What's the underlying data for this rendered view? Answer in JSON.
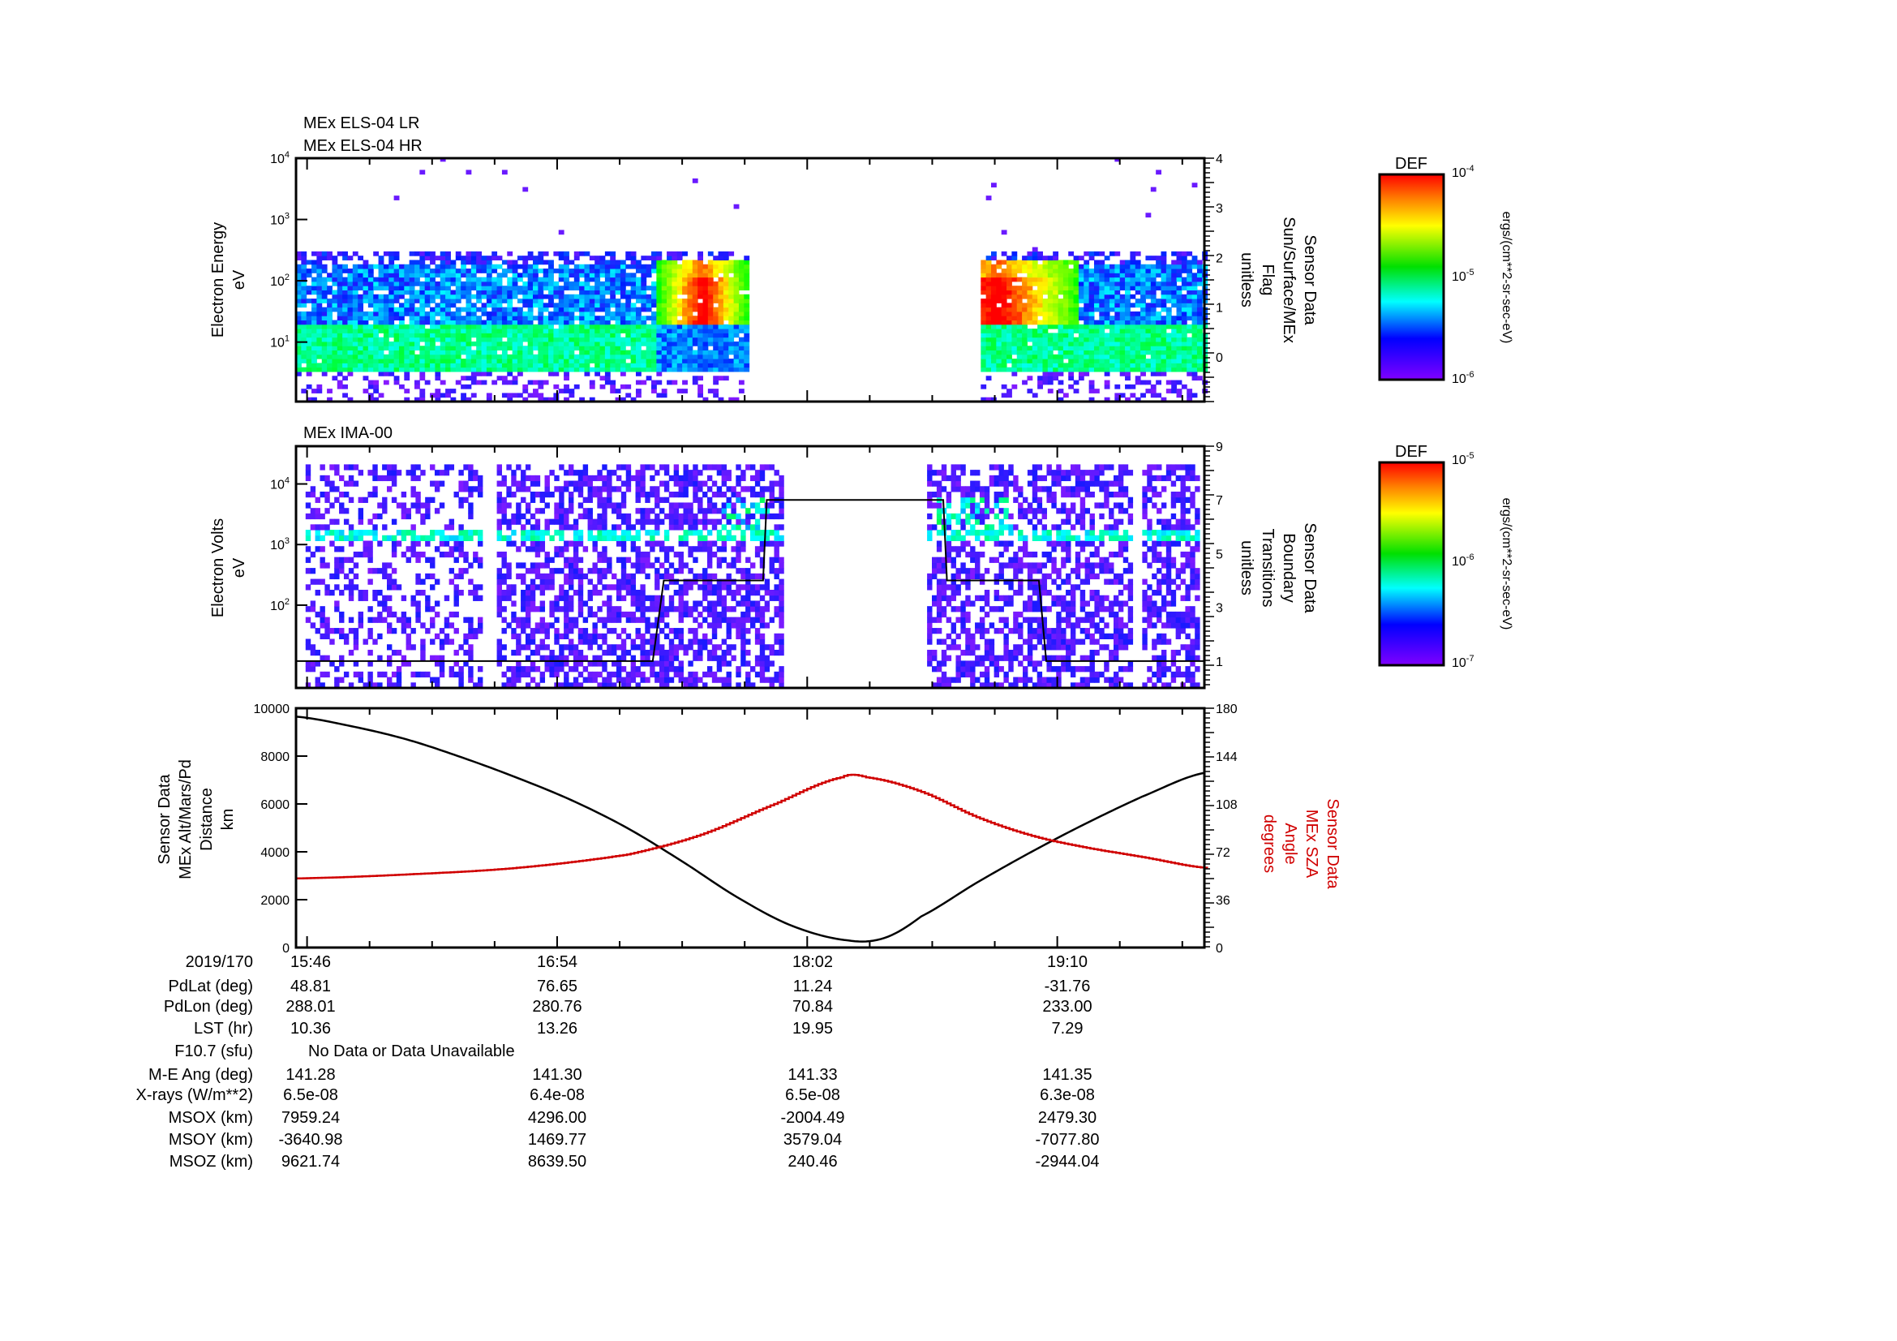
{
  "chart_data": [
    {
      "type": "heatmap",
      "title_lines": [
        "MEx ELS-04 LR",
        "MEx ELS-04 HR"
      ],
      "ylabel_lines": [
        "Electron Energy",
        "eV"
      ],
      "yscale": "log",
      "ylim": [
        1.07,
        10000
      ],
      "ytick_labels": [
        "10^4",
        "10^3",
        "10^2",
        "10^1"
      ],
      "right_ylabel_lines": [
        "Sensor Data",
        "Sun/Surface/MEx",
        "Flag",
        "unitless"
      ],
      "right_ylim": [
        -0.9,
        4
      ],
      "right_ytick_labels": [
        "4",
        "3",
        "2",
        "1",
        "0"
      ],
      "data_intervals_min": [
        [
          0,
          123
        ],
        [
          186,
          247
        ]
      ],
      "colorbar": {
        "title": "DEF",
        "range": [
          "10^-6",
          "10^-4"
        ],
        "mid": "10^-5",
        "unit": "ergs/(cm**2-sr-sec-eV)"
      }
    },
    {
      "type": "heatmap",
      "title_lines": [
        "MEx IMA-00"
      ],
      "ylabel_lines": [
        "Electron Volts",
        "eV"
      ],
      "yscale": "log",
      "ylim": [
        4.3,
        42000
      ],
      "ytick_labels": [
        "10^4",
        "10^3",
        "10^2"
      ],
      "right_ylabel_lines": [
        "Sensor Data",
        "Boundary",
        "Transitions",
        "unitless"
      ],
      "right_ylim": [
        0,
        9
      ],
      "right_ytick_labels": [
        "9",
        "7",
        "5",
        "3",
        "1"
      ],
      "data_intervals_min": [
        [
          2,
          50
        ],
        [
          54,
          132
        ],
        [
          171,
          227
        ],
        [
          229,
          245
        ]
      ],
      "boundary_transitions": {
        "t": [
          0,
          97,
          100,
          127,
          128,
          176,
          177,
          202,
          204,
          247
        ],
        "v": [
          1,
          1,
          4,
          4,
          7,
          7,
          4,
          4,
          1,
          1
        ]
      },
      "colorbar": {
        "title": "DEF",
        "range": [
          "10^-7",
          "10^-5"
        ],
        "mid": "10^-6",
        "unit": "ergs/(cm**2-sr-sec-eV)"
      }
    },
    {
      "type": "line",
      "ylabel_lines": [
        "Sensor Data",
        "MEx Alt/Mars/Pd",
        "Distance",
        "km"
      ],
      "ylim": [
        0,
        10000
      ],
      "ytick_labels": [
        "10000",
        "8000",
        "6000",
        "4000",
        "2000",
        "0"
      ],
      "right_ylabel_lines": [
        "Sensor Data",
        "MEx SZA",
        "Angle",
        "degrees"
      ],
      "right_ylim": [
        0,
        180
      ],
      "right_ytick_labels": [
        "180",
        "144",
        "108",
        "72",
        "36",
        "0"
      ],
      "x_unit": "minutes after 15:43",
      "series": [
        {
          "name": "MEx Alt/Mars/Pd Distance",
          "color": "#000000",
          "x": [
            0,
            15,
            30,
            45,
            60,
            75,
            90,
            105,
            120,
            135,
            150,
            160,
            170,
            185,
            200,
            215,
            230,
            247
          ],
          "y": [
            9650,
            9250,
            8700,
            7950,
            7100,
            6150,
            5000,
            3600,
            2100,
            900,
            300,
            400,
            1300,
            2700,
            4000,
            5200,
            6300,
            7300
          ]
        },
        {
          "name": "MEx SZA Angle",
          "color": "#d00000",
          "axis": "right",
          "x": [
            0,
            30,
            60,
            90,
            110,
            130,
            148,
            155,
            170,
            185,
            200,
            215,
            230,
            247
          ],
          "y": [
            52,
            55,
            60,
            70,
            85,
            108,
            128,
            128,
            117,
            98,
            84,
            75,
            68,
            60
          ]
        }
      ]
    }
  ],
  "ephemeris": {
    "rows": [
      {
        "label": "2019/170",
        "values": [
          "15:46",
          "16:54",
          "18:02",
          "19:10"
        ]
      },
      {
        "label": "PdLat (deg)",
        "values": [
          "48.81",
          "76.65",
          "11.24",
          "-31.76"
        ]
      },
      {
        "label": "PdLon (deg)",
        "values": [
          "288.01",
          "280.76",
          "70.84",
          "233.00"
        ]
      },
      {
        "label": "LST (hr)",
        "values": [
          "10.36",
          "13.26",
          "19.95",
          "7.29"
        ]
      },
      {
        "label": "F10.7 (sfu)",
        "note": "No Data or Data Unavailable"
      },
      {
        "label": "M-E Ang (deg)",
        "values": [
          "141.28",
          "141.30",
          "141.33",
          "141.35"
        ]
      },
      {
        "label": "X-rays (W/m**2)",
        "values": [
          "6.5e-08",
          "6.4e-08",
          "6.5e-08",
          "6.3e-08"
        ]
      },
      {
        "label": "MSOX (km)",
        "values": [
          "7959.24",
          "4296.00",
          "-2004.49",
          "2479.30"
        ]
      },
      {
        "label": "MSOY (km)",
        "values": [
          "-3640.98",
          "1469.77",
          "3579.04",
          "-7077.80"
        ]
      },
      {
        "label": "MSOZ (km)",
        "values": [
          "9621.74",
          "8639.50",
          "240.46",
          "-2944.04"
        ]
      }
    ]
  }
}
